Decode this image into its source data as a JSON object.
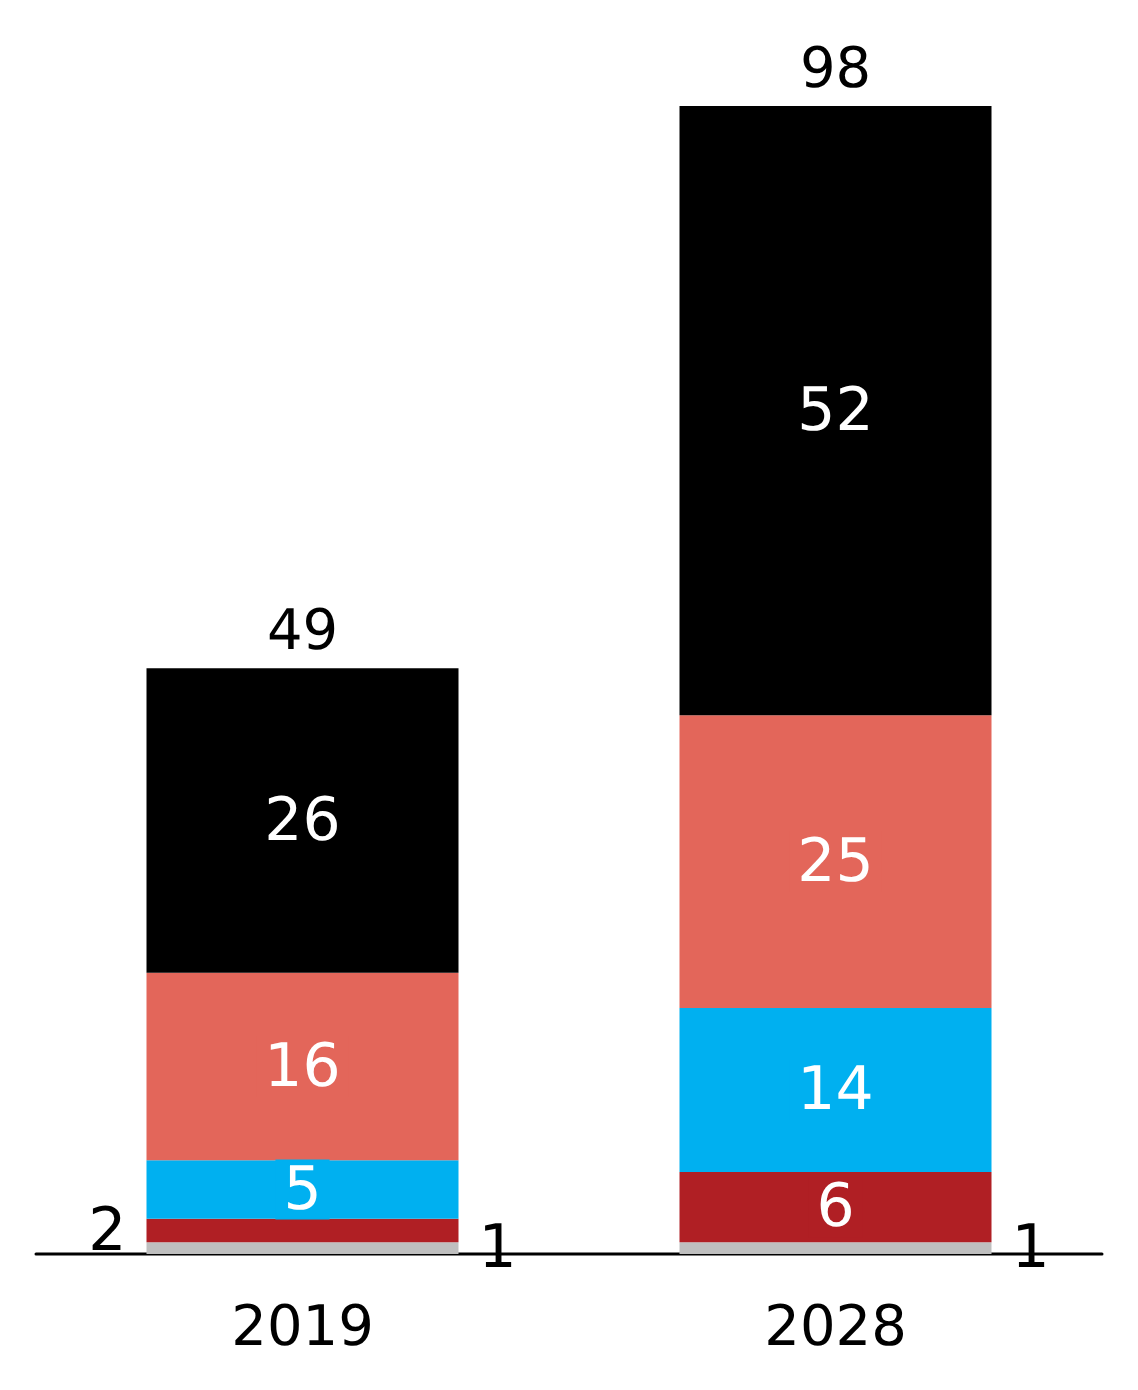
{
  "chart_data": {
    "type": "bar",
    "stacked": true,
    "categories": [
      "2019",
      "2028"
    ],
    "series": [
      {
        "color": "#bfbfbf",
        "values": [
          1,
          1
        ]
      },
      {
        "color": "#b01f24",
        "values": [
          2,
          6
        ]
      },
      {
        "color": "#00b0f0",
        "values": [
          5,
          14
        ]
      },
      {
        "color": "#e3665a",
        "values": [
          16,
          25
        ]
      },
      {
        "color": "#000000",
        "values": [
          26,
          52
        ]
      }
    ],
    "data_labels": true,
    "totals": [
      "49",
      "98"
    ]
  }
}
